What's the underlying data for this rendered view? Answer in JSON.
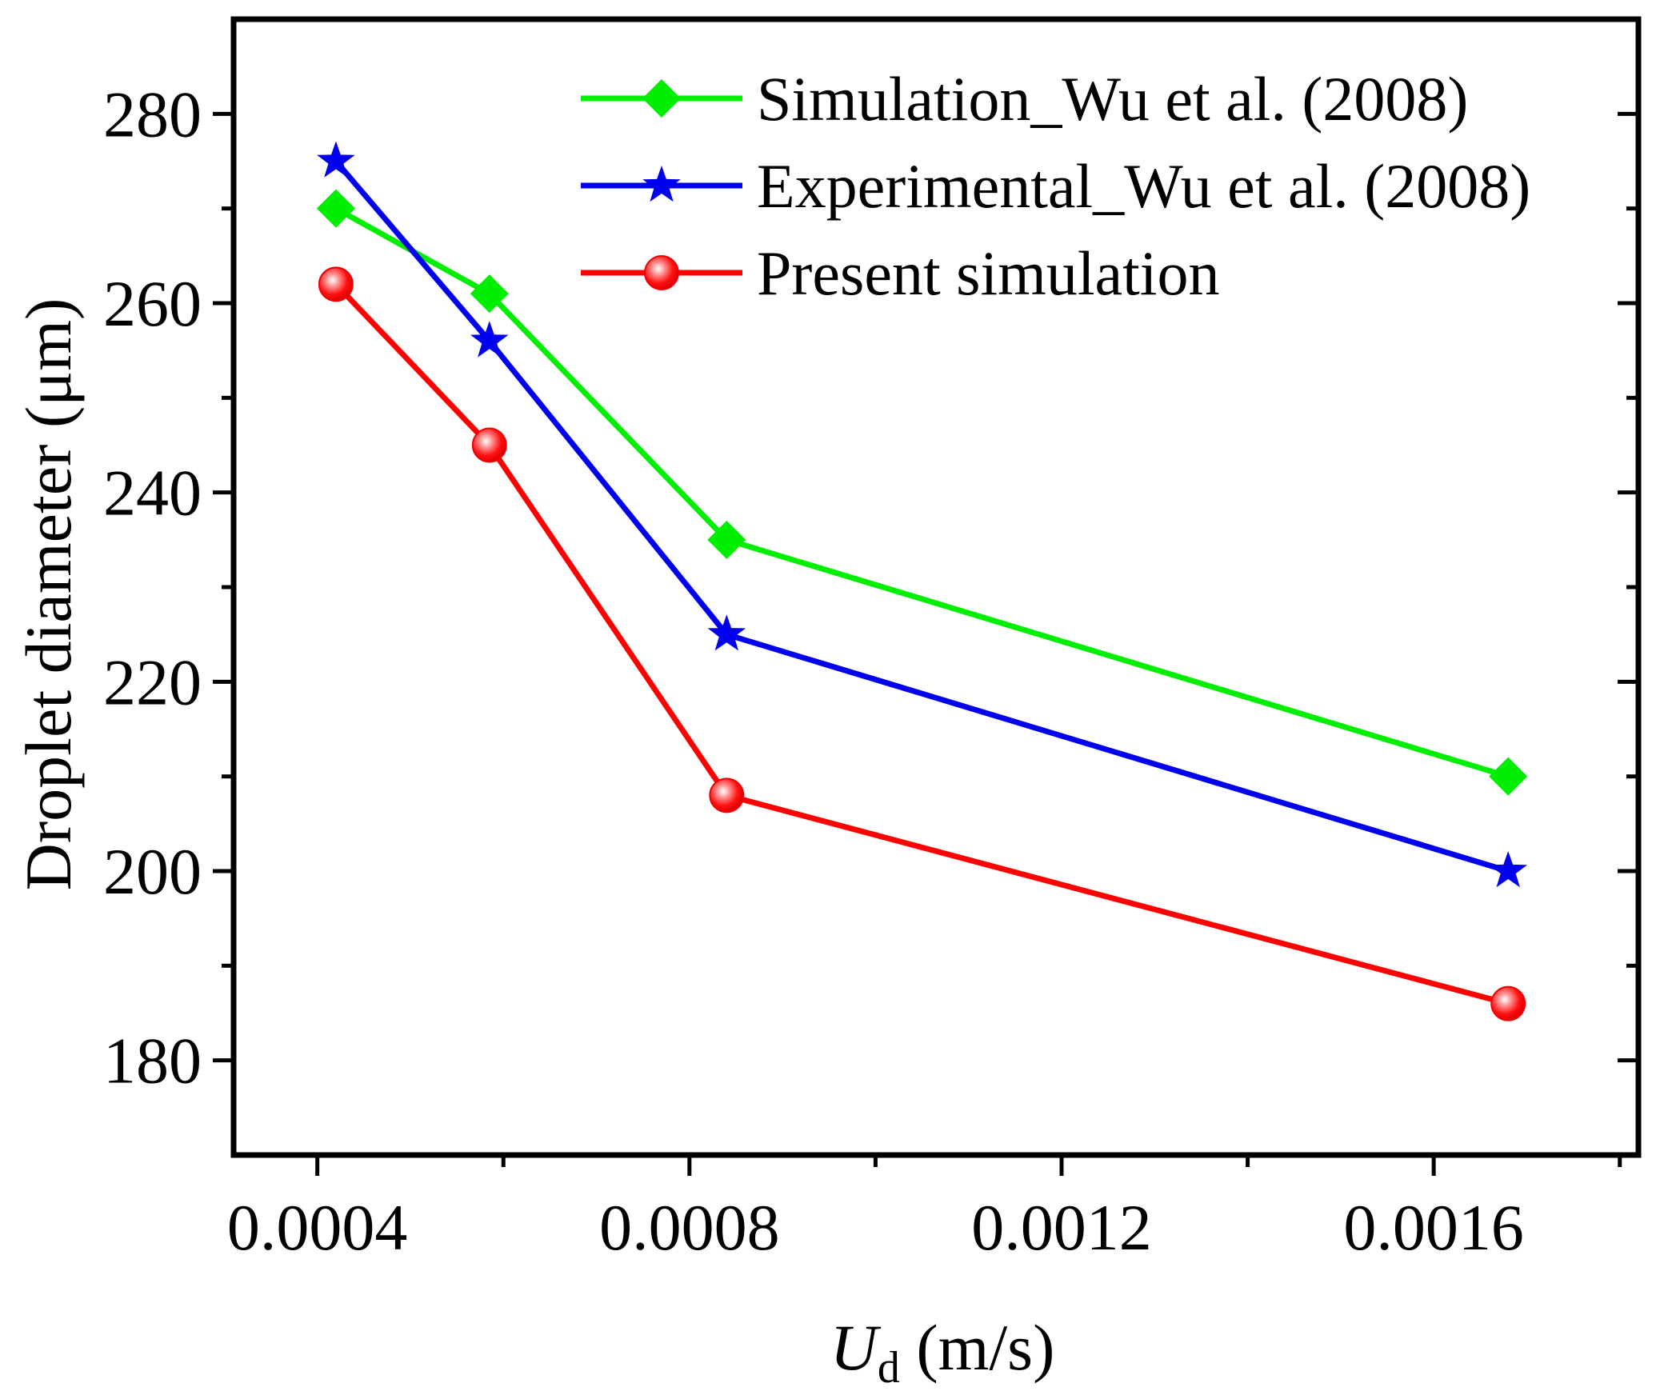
{
  "chart_data": {
    "type": "line",
    "title": "",
    "xlabel": {
      "main": "U",
      "sub": "d",
      "unit": " (m/s)"
    },
    "ylabel": "Droplet diameter (μm)",
    "xlim": [
      0.00031,
      0.00182
    ],
    "ylim": [
      170,
      290
    ],
    "x_ticks": [
      0.0004,
      0.0008,
      0.0012,
      0.0016
    ],
    "x_tick_labels": [
      "0.0004",
      "0.0008",
      "0.0012",
      "0.0016"
    ],
    "x_minor_ticks": [
      0.0006,
      0.001,
      0.0014,
      0.0018
    ],
    "y_ticks": [
      180,
      200,
      220,
      240,
      260,
      280
    ],
    "y_tick_labels": [
      "180",
      "200",
      "220",
      "240",
      "260",
      "280"
    ],
    "y_minor_ticks": [
      190,
      210,
      230,
      250,
      270
    ],
    "grid": false,
    "legend_position": "top-right",
    "series": [
      {
        "name": "Simulation_Wu et al. (2008)",
        "color": "#00ee00",
        "marker": "diamond",
        "x": [
          0.00042,
          0.000585,
          0.00084,
          0.00168
        ],
        "y": [
          270,
          261,
          235,
          210
        ]
      },
      {
        "name": "Experimental_Wu et al. (2008)",
        "color": "#0000ee",
        "marker": "star",
        "x": [
          0.00042,
          0.000585,
          0.00084,
          0.00168
        ],
        "y": [
          275,
          256,
          225,
          200
        ]
      },
      {
        "name": "Present simulation",
        "color": "#ff0000",
        "marker": "circle",
        "x": [
          0.00042,
          0.000585,
          0.00084,
          0.00168
        ],
        "y": [
          262,
          245,
          208,
          186
        ]
      }
    ]
  }
}
